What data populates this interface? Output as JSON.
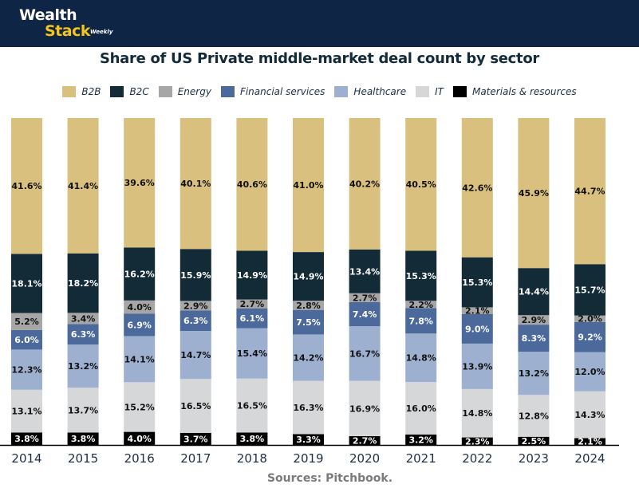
{
  "brand": {
    "line1": "Wealth",
    "line2": "Stack",
    "tagline": "Weekly",
    "header_color": "#0f2546",
    "accent_color": "#f5c518"
  },
  "source": "Sources: Pitchbook.",
  "chart_data": {
    "type": "bar",
    "stacked": true,
    "normalized": true,
    "title": "Share of US Private middle-market deal count by sector",
    "xlabel": "",
    "ylabel": "",
    "ylim": [
      0,
      100
    ],
    "grid": false,
    "legend_position": "top",
    "categories": [
      "2014",
      "2015",
      "2016",
      "2017",
      "2018",
      "2019",
      "2020",
      "2021",
      "2022",
      "2023",
      "2024"
    ],
    "series": [
      {
        "name": "Materials & resources",
        "color": "#000000",
        "label_color": "#ffffff",
        "values": [
          3.8,
          3.8,
          4.0,
          3.7,
          3.8,
          3.3,
          2.7,
          3.2,
          2.3,
          2.5,
          2.1
        ]
      },
      {
        "name": "IT",
        "color": "#d6d7d9",
        "label_color": "#111111",
        "values": [
          13.1,
          13.7,
          15.2,
          16.5,
          16.5,
          16.3,
          16.9,
          16.0,
          14.8,
          12.8,
          14.3
        ]
      },
      {
        "name": "Healthcare",
        "color": "#9db0cf",
        "label_color": "#111111",
        "values": [
          12.3,
          13.2,
          14.1,
          14.7,
          15.4,
          14.2,
          16.7,
          14.8,
          13.9,
          13.2,
          12.0
        ]
      },
      {
        "name": "Financial services",
        "color": "#4b6a9b",
        "label_color": "#ffffff",
        "values": [
          6.0,
          6.3,
          6.9,
          6.3,
          6.1,
          7.5,
          7.4,
          7.8,
          9.0,
          8.3,
          9.2
        ]
      },
      {
        "name": "Energy",
        "color": "#a6a6a6",
        "label_color": "#111111",
        "values": [
          5.2,
          3.4,
          4.0,
          2.9,
          2.7,
          2.8,
          2.7,
          2.2,
          2.1,
          2.9,
          2.0
        ]
      },
      {
        "name": "B2C",
        "color": "#132a37",
        "label_color": "#ffffff",
        "values": [
          18.1,
          18.2,
          16.2,
          15.9,
          14.9,
          14.9,
          13.4,
          15.3,
          15.3,
          14.4,
          15.7
        ]
      },
      {
        "name": "B2B",
        "color": "#d9c07e",
        "label_color": "#111111",
        "values": [
          41.6,
          41.4,
          39.6,
          40.1,
          40.6,
          41.0,
          40.2,
          40.5,
          42.6,
          45.9,
          44.7
        ]
      }
    ],
    "legend": [
      "B2B",
      "B2C",
      "Energy",
      "Financial services",
      "Healthcare",
      "IT",
      "Materials & resources"
    ]
  }
}
